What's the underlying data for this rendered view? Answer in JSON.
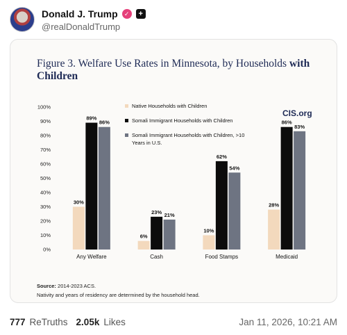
{
  "post": {
    "display_name": "Donald J. Trump",
    "handle": "@realDonaldTrump",
    "verified_icon": "verified-badge-icon",
    "plus_icon": "plus-icon",
    "retruths_count": "777",
    "retruths_label": "ReTruths",
    "likes_count": "2.05k",
    "likes_label": "Likes",
    "timestamp": "Jan 11, 2026, 10:21 AM"
  },
  "figure": {
    "title_prefix": "Figure 3. Welfare Use Rates in Minnesota, by Households ",
    "title_bold": "with Children",
    "brand": "CIS.org",
    "source_label": "Source:",
    "source_text": " 2014-2023 ACS.",
    "note": "Nativity and years of residency are determined by the household head."
  },
  "chart_data": {
    "type": "bar",
    "title": "Figure 3. Welfare Use Rates in Minnesota, by Households with Children",
    "categories": [
      "Any Welfare",
      "Cash",
      "Food Stamps",
      "Medicaid"
    ],
    "yticks": [
      "0%",
      "10%",
      "20%",
      "30%",
      "40%",
      "50%",
      "60%",
      "70%",
      "80%",
      "90%",
      "100%"
    ],
    "ylim": [
      0,
      100
    ],
    "grid": false,
    "legend_position": "top-center",
    "series": [
      {
        "name": "Native Households with Children",
        "color": "#f3d9bd",
        "values": [
          30,
          6,
          10,
          28
        ],
        "labels": [
          "30%",
          "6%",
          "10%",
          "28%"
        ]
      },
      {
        "name": "Somali Immigrant Households with Children",
        "color": "#0c0c0c",
        "values": [
          89,
          23,
          62,
          86
        ],
        "labels": [
          "89%",
          "23%",
          "62%",
          "86%"
        ]
      },
      {
        "name": "Somali Immigrant Households with Children, >10 Years in U.S.",
        "color": "#6e7482",
        "values": [
          86,
          21,
          54,
          83
        ],
        "labels": [
          "86%",
          "21%",
          "54%",
          "83%"
        ]
      }
    ],
    "legend_lines": [
      [
        "Native Households with Children"
      ],
      [
        "Somali Immigrant Households with Children"
      ],
      [
        "Somali Immigrant Households with Children, >10",
        "Years in U.S."
      ]
    ]
  }
}
